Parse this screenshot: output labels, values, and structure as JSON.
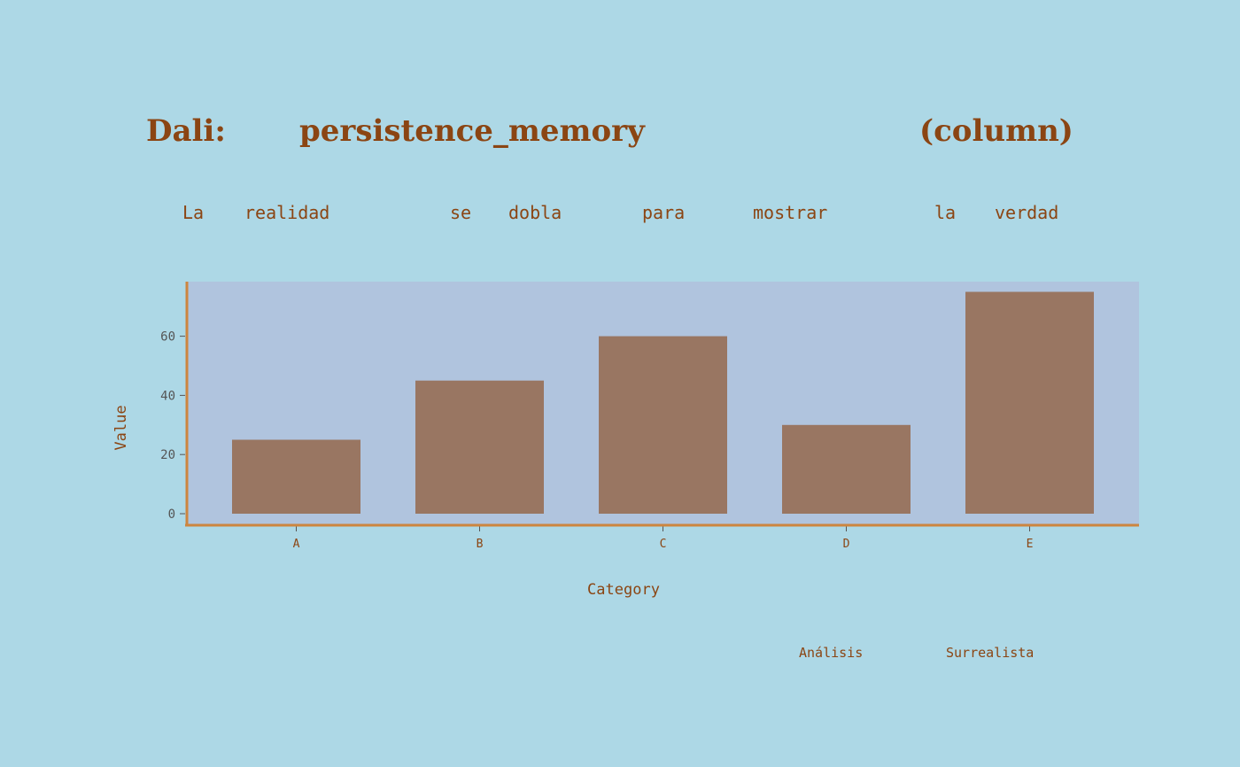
{
  "title_words": [
    "Dali:",
    "persistence_memory",
    "(column)"
  ],
  "subtitle_words": [
    "La",
    "realidad",
    "se",
    "dobla",
    "para",
    "mostrar",
    "la",
    "verdad"
  ],
  "footer_words": [
    "Análisis",
    "Surrealista"
  ],
  "colors": {
    "background": "#add8e6",
    "plot_background": "#b0c4de",
    "bar": "#997662",
    "axis": "#cd853f",
    "text": "#8b4513"
  },
  "chart_data": {
    "type": "bar",
    "title": "Dali: persistence_memory (column)",
    "subtitle": "La realidad se dobla para mostrar la verdad",
    "categories": [
      "A",
      "B",
      "C",
      "D",
      "E"
    ],
    "values": [
      25,
      45,
      60,
      30,
      75
    ],
    "xlabel": "Category",
    "ylabel": "Value",
    "yticks": [
      0,
      20,
      40,
      60
    ],
    "ylim": [
      0,
      79
    ],
    "grid": false,
    "legend": "none"
  }
}
